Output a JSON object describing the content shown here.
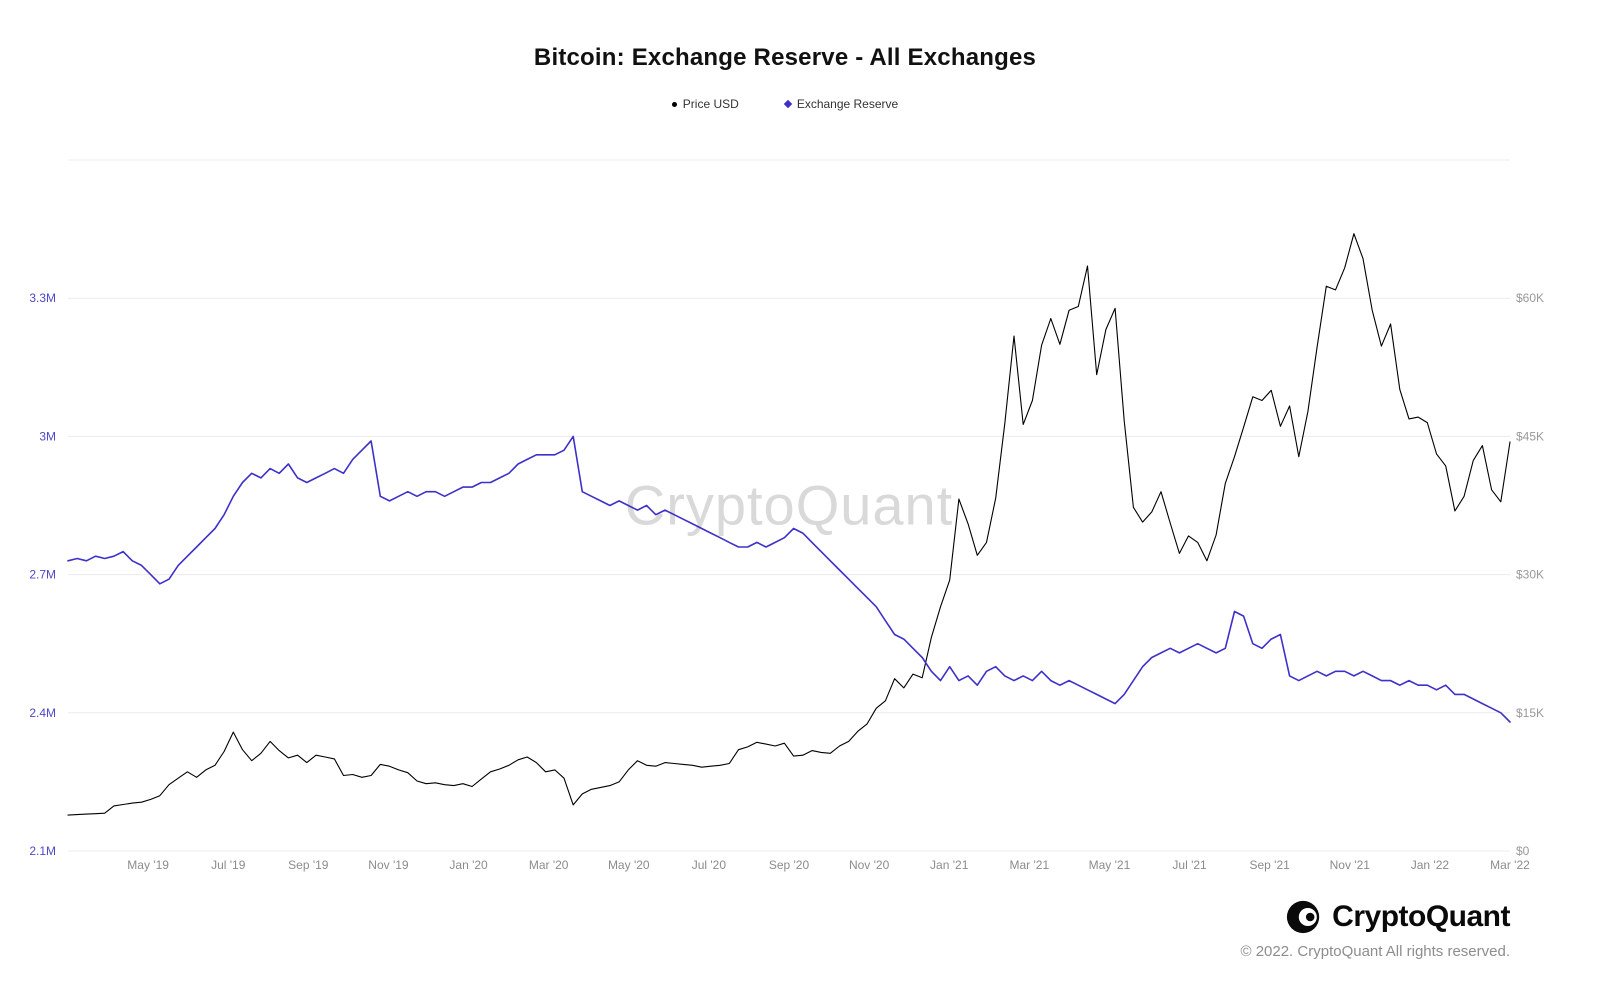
{
  "page": {
    "title": "Bitcoin: Exchange Reserve - All Exchanges"
  },
  "watermark": "CryptoQuant",
  "footer": {
    "brand": "CryptoQuant",
    "copyright": "© 2022. CryptoQuant All rights reserved."
  },
  "colors": {
    "price_line": "#000000",
    "reserve_line": "#3d31c9",
    "left_axis_labels": "#5048c8",
    "right_axis_labels": "#999999",
    "x_axis_labels": "#8c8c8c",
    "gridline": "#ececec"
  },
  "chart_data": {
    "type": "line",
    "title": "Bitcoin: Exchange Reserve - All Exchanges",
    "legend_position": "top",
    "grid": true,
    "x_ticks": {
      "labels": [
        "May '19",
        "Jul '19",
        "Sep '19",
        "Nov '19",
        "Jan '20",
        "Mar '20",
        "May '20",
        "Jul '20",
        "Sep '20",
        "Nov '20",
        "Jan '21",
        "Mar '21",
        "May '21",
        "Jul '21",
        "Sep '21",
        "Nov '21",
        "Jan '22",
        "Mar '22"
      ],
      "first_tick_month": 2,
      "tick_step_months": 2,
      "axis_span_months": 36
    },
    "left_axis": {
      "labels": [
        "3.3M",
        "3M",
        "2.7M",
        "2.4M",
        "2.1M"
      ],
      "values": [
        3.3,
        3.0,
        2.7,
        2.4,
        2.1
      ],
      "min": 2.1,
      "max": 3.6,
      "unit": "BTC (millions)"
    },
    "right_axis": {
      "labels": [
        "$60K",
        "$45K",
        "$30K",
        "$15K",
        "$0"
      ],
      "values": [
        60,
        45,
        30,
        15,
        0
      ],
      "min": 0,
      "max": 75,
      "unit": "USD (thousands)"
    },
    "series": [
      {
        "name": "Price USD",
        "axis": "right",
        "color": "#000000",
        "unit": "USD (thousands)",
        "values": [
          3.9,
          3.95,
          4.0,
          4.05,
          4.1,
          4.9,
          5.05,
          5.2,
          5.3,
          5.6,
          6.0,
          7.2,
          7.9,
          8.6,
          8.0,
          8.8,
          9.3,
          10.8,
          12.9,
          11.0,
          9.8,
          10.6,
          11.9,
          10.9,
          10.1,
          10.4,
          9.6,
          10.4,
          10.2,
          10.0,
          8.2,
          8.3,
          8.0,
          8.2,
          9.4,
          9.2,
          8.8,
          8.5,
          7.6,
          7.3,
          7.4,
          7.2,
          7.1,
          7.3,
          7.0,
          7.8,
          8.6,
          8.9,
          9.3,
          9.9,
          10.2,
          9.6,
          8.6,
          8.8,
          7.9,
          5.0,
          6.2,
          6.7,
          6.9,
          7.1,
          7.5,
          8.8,
          9.8,
          9.3,
          9.2,
          9.6,
          9.5,
          9.4,
          9.3,
          9.1,
          9.2,
          9.3,
          9.5,
          11.0,
          11.3,
          11.8,
          11.6,
          11.4,
          11.7,
          10.3,
          10.4,
          10.9,
          10.7,
          10.6,
          11.4,
          11.9,
          13.0,
          13.8,
          15.5,
          16.3,
          18.7,
          17.7,
          19.2,
          18.8,
          23.2,
          26.5,
          29.4,
          38.2,
          35.5,
          32.1,
          33.5,
          38.3,
          46.4,
          55.9,
          46.3,
          48.9,
          54.9,
          57.8,
          55.0,
          58.7,
          59.1,
          63.5,
          51.7,
          56.6,
          58.9,
          46.7,
          37.3,
          35.7,
          36.8,
          39.0,
          35.6,
          32.3,
          34.2,
          33.5,
          31.5,
          34.3,
          39.9,
          42.8,
          46.0,
          49.3,
          48.9,
          50.0,
          46.1,
          48.3,
          42.8,
          47.7,
          54.7,
          61.3,
          60.9,
          63.3,
          67.0,
          64.3,
          58.7,
          54.8,
          57.2,
          50.1,
          46.9,
          47.1,
          46.5,
          43.1,
          41.8,
          36.9,
          38.5,
          42.4,
          44.0,
          39.2,
          37.9,
          44.4
        ]
      },
      {
        "name": "Exchange Reserve",
        "axis": "left",
        "color": "#3d31c9",
        "unit": "BTC (millions)",
        "values": [
          2.73,
          2.735,
          2.73,
          2.74,
          2.735,
          2.74,
          2.75,
          2.73,
          2.72,
          2.7,
          2.68,
          2.69,
          2.72,
          2.74,
          2.76,
          2.78,
          2.8,
          2.83,
          2.87,
          2.9,
          2.92,
          2.91,
          2.93,
          2.92,
          2.94,
          2.91,
          2.9,
          2.91,
          2.92,
          2.93,
          2.92,
          2.95,
          2.97,
          2.99,
          2.87,
          2.86,
          2.87,
          2.88,
          2.87,
          2.88,
          2.88,
          2.87,
          2.88,
          2.89,
          2.89,
          2.9,
          2.9,
          2.91,
          2.92,
          2.94,
          2.95,
          2.96,
          2.96,
          2.96,
          2.97,
          3.0,
          2.88,
          2.87,
          2.86,
          2.85,
          2.86,
          2.85,
          2.84,
          2.85,
          2.83,
          2.84,
          2.83,
          2.82,
          2.81,
          2.8,
          2.79,
          2.78,
          2.77,
          2.76,
          2.76,
          2.77,
          2.76,
          2.77,
          2.78,
          2.8,
          2.79,
          2.77,
          2.75,
          2.73,
          2.71,
          2.69,
          2.67,
          2.65,
          2.63,
          2.6,
          2.57,
          2.56,
          2.54,
          2.52,
          2.49,
          2.47,
          2.5,
          2.47,
          2.48,
          2.46,
          2.49,
          2.5,
          2.48,
          2.47,
          2.48,
          2.47,
          2.49,
          2.47,
          2.46,
          2.47,
          2.46,
          2.45,
          2.44,
          2.43,
          2.42,
          2.44,
          2.47,
          2.5,
          2.52,
          2.53,
          2.54,
          2.53,
          2.54,
          2.55,
          2.54,
          2.53,
          2.54,
          2.62,
          2.61,
          2.55,
          2.54,
          2.56,
          2.57,
          2.48,
          2.47,
          2.48,
          2.49,
          2.48,
          2.49,
          2.49,
          2.48,
          2.49,
          2.48,
          2.47,
          2.47,
          2.46,
          2.47,
          2.46,
          2.46,
          2.45,
          2.46,
          2.44,
          2.44,
          2.43,
          2.42,
          2.41,
          2.4,
          2.38
        ]
      }
    ]
  }
}
